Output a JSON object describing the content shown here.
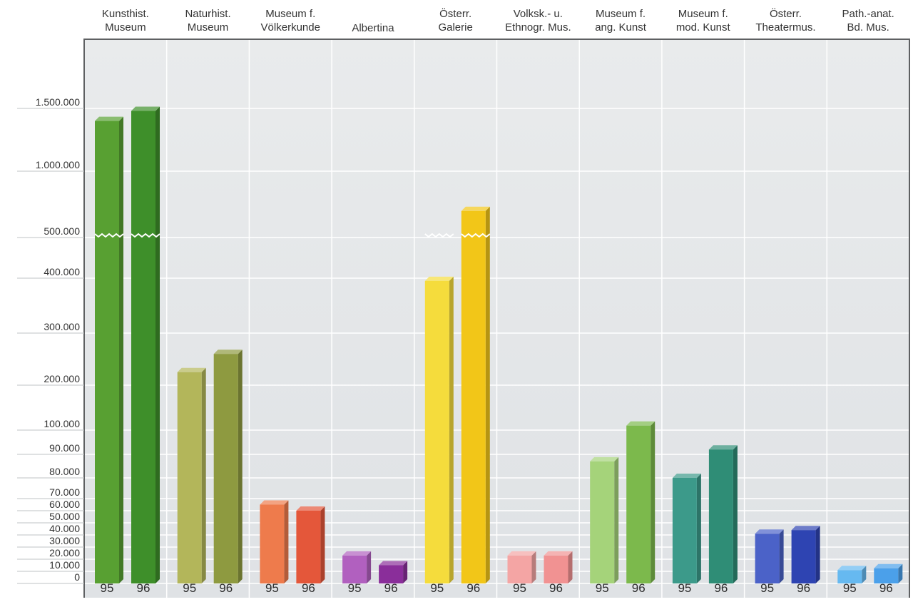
{
  "chart_data": {
    "type": "bar",
    "categories": [
      [
        "Kunsthist.",
        "Museum"
      ],
      [
        "Naturhist.",
        "Museum"
      ],
      [
        "Museum f.",
        "Völkerkunde"
      ],
      [
        "Albertina"
      ],
      [
        "Österr.",
        "Galerie"
      ],
      [
        "Volksk.- u.",
        "Ethnogr. Mus."
      ],
      [
        "Museum f.",
        "ang. Kunst"
      ],
      [
        "Museum f.",
        "mod. Kunst"
      ],
      [
        "Österr.",
        "Theatermus."
      ],
      [
        "Path.-anat.",
        "Bd. Mus."
      ]
    ],
    "series": [
      {
        "label": "95",
        "values": [
          1400000,
          225000,
          65000,
          23000,
          395000,
          23000,
          87000,
          80000,
          41000,
          11000
        ]
      },
      {
        "label": "96",
        "values": [
          1480000,
          260000,
          60000,
          15000,
          700000,
          23000,
          110000,
          92000,
          44000,
          12500
        ]
      }
    ],
    "y_ticks": [
      {
        "label": "0",
        "value": 0
      },
      {
        "label": "10.000",
        "value": 10000
      },
      {
        "label": "20.000",
        "value": 20000
      },
      {
        "label": "30.000",
        "value": 30000
      },
      {
        "label": "40.000",
        "value": 40000
      },
      {
        "label": "50.000",
        "value": 50000
      },
      {
        "label": "60.000",
        "value": 60000
      },
      {
        "label": "70.000",
        "value": 70000
      },
      {
        "label": "80.000",
        "value": 80000
      },
      {
        "label": "90.000",
        "value": 90000
      },
      {
        "label": "100.000",
        "value": 100000
      },
      {
        "label": "200.000",
        "value": 200000
      },
      {
        "label": "300.000",
        "value": 300000
      },
      {
        "label": "400.000",
        "value": 400000
      },
      {
        "label": "500.000",
        "value": 500000
      },
      {
        "label": "1.000.000",
        "value": 1000000
      },
      {
        "label": "1.500.000",
        "value": 1500000
      }
    ],
    "axis_break": "500.000",
    "broken_bars": [
      "Kunsthist. Museum",
      "Österr. Galerie"
    ],
    "grid": true,
    "colors": {
      "background": "#e6e8ea",
      "grid": "#ffffff",
      "frame": "#5e6062",
      "bars": [
        [
          "#58a032",
          "#3e8f2a"
        ],
        [
          "#b3b65a",
          "#8e9a40"
        ],
        [
          "#ee7b4c",
          "#e4573a"
        ],
        [
          "#b160bf",
          "#8a2e9a"
        ],
        [
          "#f5dc3c",
          "#f2c618"
        ],
        [
          "#f4a5a4",
          "#f19292"
        ],
        [
          "#a5d37a",
          "#7cb94c"
        ],
        [
          "#3c9a8a",
          "#2f8d76"
        ],
        [
          "#4b62c8",
          "#2e44b2"
        ],
        [
          "#66b9f0",
          "#4ba0ea"
        ]
      ]
    }
  }
}
